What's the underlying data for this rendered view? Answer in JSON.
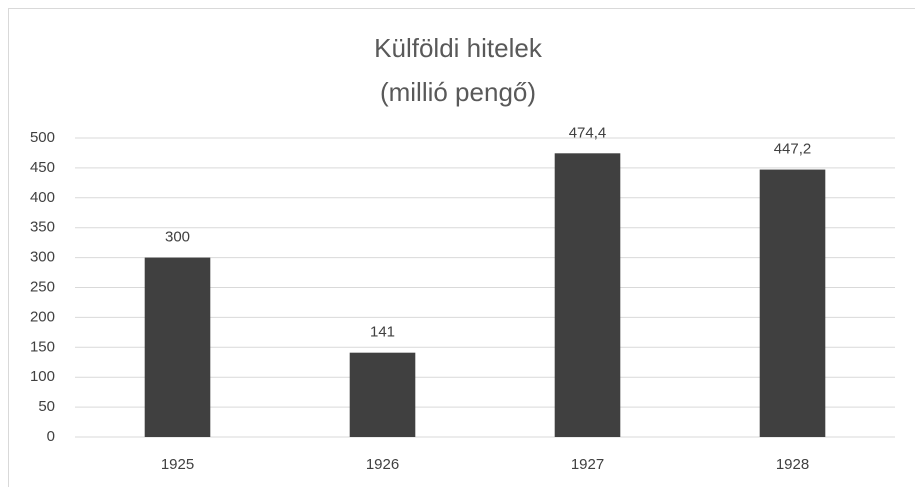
{
  "chart_data": {
    "type": "bar",
    "title": "Külföldi hitelek",
    "subtitle": "(millió pengő)",
    "categories": [
      "1925",
      "1926",
      "1927",
      "1928"
    ],
    "values": [
      300,
      141,
      474.4,
      447.2
    ],
    "value_labels": [
      "300",
      "141",
      "474,4",
      "447,2"
    ],
    "color": "#404040",
    "ylim": [
      0,
      500
    ],
    "yticks": [
      0,
      50,
      100,
      150,
      200,
      250,
      300,
      350,
      400,
      450,
      500
    ],
    "grid": true
  }
}
